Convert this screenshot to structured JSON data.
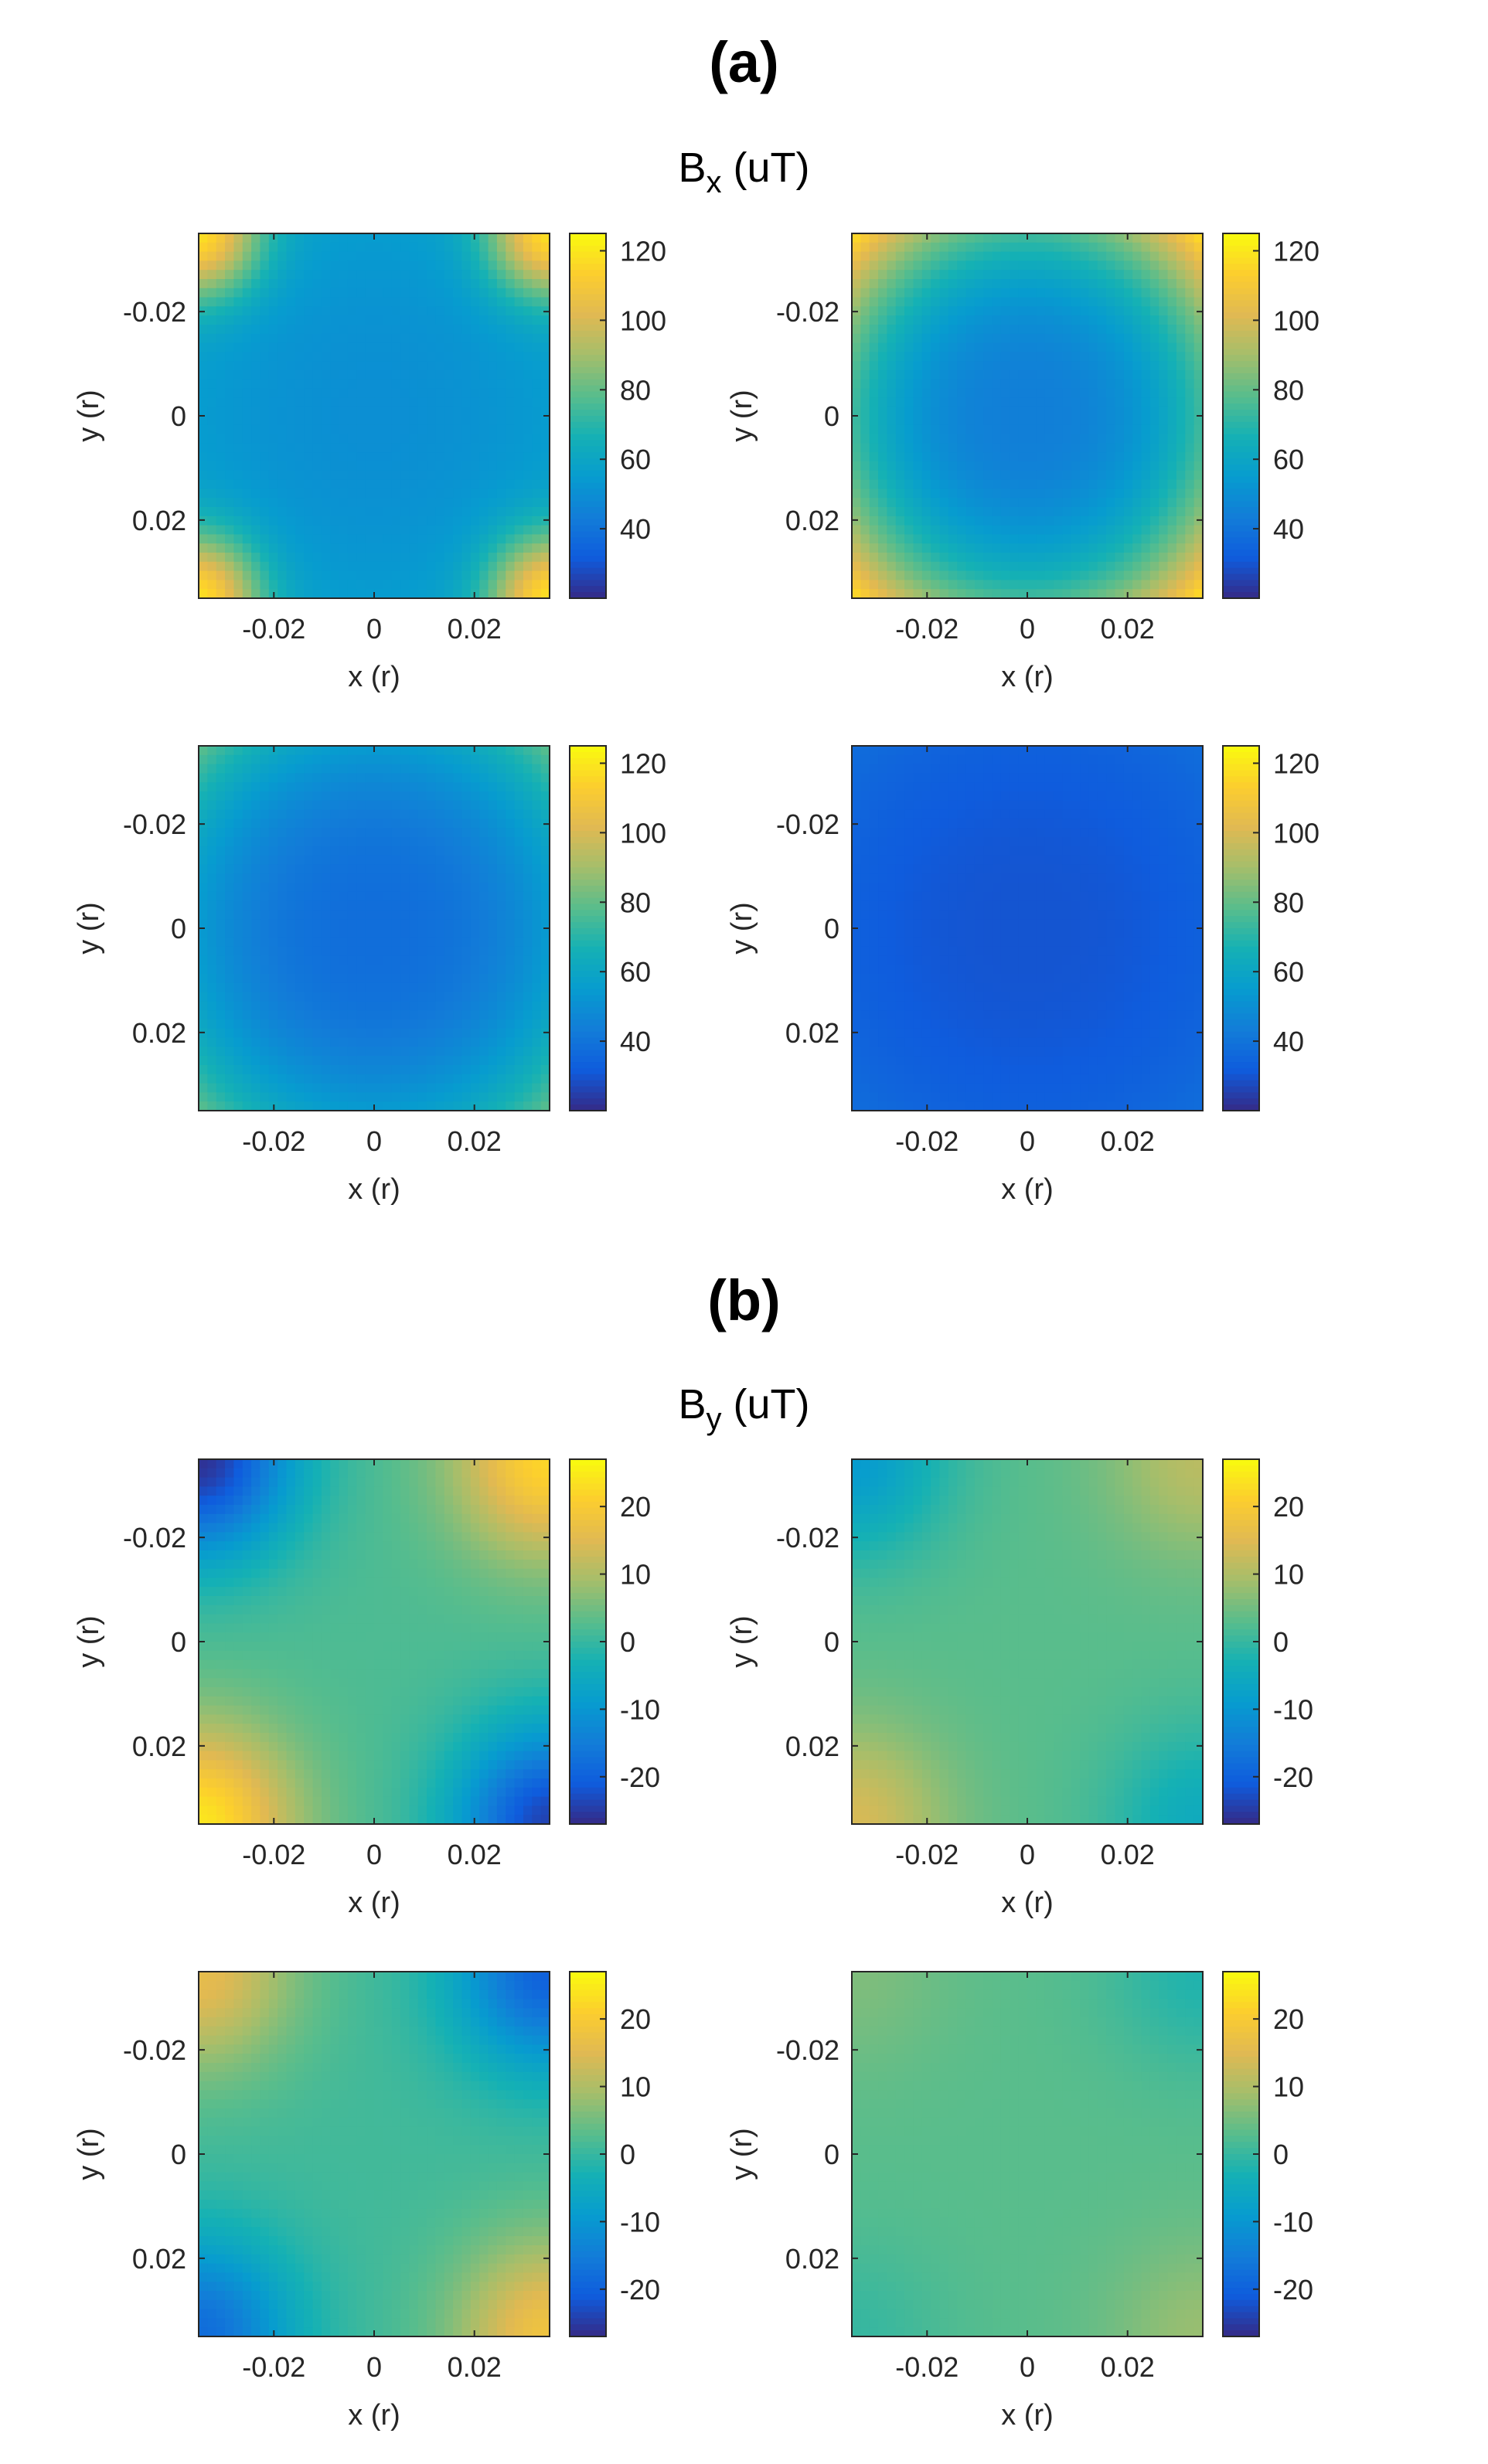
{
  "panel_a": {
    "label": "(a)",
    "title_main": "B",
    "title_sub": "x",
    "title_unit": " (uT)"
  },
  "panel_b": {
    "label": "(b)",
    "title_main": "B",
    "title_sub": "y",
    "title_unit": " (uT)"
  },
  "chart_data": [
    {
      "type": "heatmap",
      "panel": "a",
      "title": "",
      "quantity": "B_x (uT)",
      "xlabel": "x (r)",
      "ylabel": "y (r)",
      "xlim": [
        -0.035,
        0.035
      ],
      "ylim": [
        -0.035,
        0.035
      ],
      "y_direction": "reverse",
      "xticks": [
        -0.02,
        0,
        0.02
      ],
      "yticks": [
        -0.02,
        0,
        0.02
      ],
      "xtick_labels": [
        "-0.02",
        "0",
        "0.02"
      ],
      "ytick_labels": [
        "-0.02",
        "0",
        "0.02"
      ],
      "clim": [
        20,
        125
      ],
      "colorbar_ticks": [
        40,
        60,
        80,
        100,
        120
      ],
      "colorbar_tick_labels": [
        "40",
        "60",
        "80",
        "100",
        "120"
      ],
      "colormap": "parula",
      "center_value": 50,
      "corner_value": 118,
      "pattern": "corner-arcs"
    },
    {
      "type": "heatmap",
      "panel": "a",
      "title": "",
      "quantity": "B_x (uT)",
      "xlabel": "x (r)",
      "ylabel": "y (r)",
      "xlim": [
        -0.035,
        0.035
      ],
      "ylim": [
        -0.035,
        0.035
      ],
      "y_direction": "reverse",
      "xticks": [
        -0.02,
        0,
        0.02
      ],
      "yticks": [
        -0.02,
        0,
        0.02
      ],
      "xtick_labels": [
        "-0.02",
        "0",
        "0.02"
      ],
      "ytick_labels": [
        "-0.02",
        "0",
        "0.02"
      ],
      "clim": [
        20,
        125
      ],
      "colorbar_ticks": [
        40,
        60,
        80,
        100,
        120
      ],
      "colorbar_tick_labels": [
        "40",
        "60",
        "80",
        "100",
        "120"
      ],
      "colormap": "parula",
      "center_value": 44,
      "corner_value": 120,
      "pattern": "radial"
    },
    {
      "type": "heatmap",
      "panel": "a",
      "title": "",
      "quantity": "B_x (uT)",
      "xlabel": "x (r)",
      "ylabel": "y (r)",
      "xlim": [
        -0.035,
        0.035
      ],
      "ylim": [
        -0.035,
        0.035
      ],
      "y_direction": "reverse",
      "xticks": [
        -0.02,
        0,
        0.02
      ],
      "yticks": [
        -0.02,
        0,
        0.02
      ],
      "xtick_labels": [
        "-0.02",
        "0",
        "0.02"
      ],
      "ytick_labels": [
        "-0.02",
        "0",
        "0.02"
      ],
      "clim": [
        20,
        125
      ],
      "colorbar_ticks": [
        40,
        60,
        80,
        100,
        120
      ],
      "colorbar_tick_labels": [
        "40",
        "60",
        "80",
        "100",
        "120"
      ],
      "colormap": "parula",
      "center_value": 38,
      "corner_value": 80,
      "pattern": "radial"
    },
    {
      "type": "heatmap",
      "panel": "a",
      "title": "",
      "quantity": "B_x (uT)",
      "xlabel": "x (r)",
      "ylabel": "y (r)",
      "xlim": [
        -0.035,
        0.035
      ],
      "ylim": [
        -0.035,
        0.035
      ],
      "y_direction": "reverse",
      "xticks": [
        -0.02,
        0,
        0.02
      ],
      "yticks": [
        -0.02,
        0,
        0.02
      ],
      "xtick_labels": [
        "-0.02",
        "0",
        "0.02"
      ],
      "ytick_labels": [
        "-0.02",
        "0",
        "0.02"
      ],
      "clim": [
        20,
        125
      ],
      "colorbar_ticks": [
        40,
        60,
        80,
        100,
        120
      ],
      "colorbar_tick_labels": [
        "40",
        "60",
        "80",
        "100",
        "120"
      ],
      "colormap": "parula",
      "center_value": 30,
      "corner_value": 38,
      "pattern": "radial"
    },
    {
      "type": "heatmap",
      "panel": "b",
      "title": "",
      "quantity": "B_y (uT)",
      "xlabel": "x (r)",
      "ylabel": "y (r)",
      "xlim": [
        -0.035,
        0.035
      ],
      "ylim": [
        -0.035,
        0.035
      ],
      "y_direction": "reverse",
      "xticks": [
        -0.02,
        0,
        0.02
      ],
      "yticks": [
        -0.02,
        0,
        0.02
      ],
      "xtick_labels": [
        "-0.02",
        "0",
        "0.02"
      ],
      "ytick_labels": [
        "-0.02",
        "0",
        "0.02"
      ],
      "clim": [
        -27,
        27
      ],
      "colorbar_ticks": [
        -20,
        -10,
        0,
        10,
        20
      ],
      "colorbar_tick_labels": [
        "-20",
        "-10",
        "0",
        "10",
        "20"
      ],
      "colormap": "parula",
      "center_value": 2,
      "corner_values": {
        "top_left": -26,
        "top_right": 22,
        "bottom_left": 24,
        "bottom_right": -24
      }
    },
    {
      "type": "heatmap",
      "panel": "b",
      "title": "",
      "quantity": "B_y (uT)",
      "xlabel": "x (r)",
      "ylabel": "y (r)",
      "xlim": [
        -0.035,
        0.035
      ],
      "ylim": [
        -0.035,
        0.035
      ],
      "y_direction": "reverse",
      "xticks": [
        -0.02,
        0,
        0.02
      ],
      "yticks": [
        -0.02,
        0,
        0.02
      ],
      "xtick_labels": [
        "-0.02",
        "0",
        "0.02"
      ],
      "ytick_labels": [
        "-0.02",
        "0",
        "0.02"
      ],
      "clim": [
        -27,
        27
      ],
      "colorbar_ticks": [
        -20,
        -10,
        0,
        10,
        20
      ],
      "colorbar_tick_labels": [
        "-20",
        "-10",
        "0",
        "10",
        "20"
      ],
      "colormap": "parula",
      "center_value": 3,
      "corner_values": {
        "top_left": -9,
        "top_right": 11,
        "bottom_left": 14,
        "bottom_right": -5
      }
    },
    {
      "type": "heatmap",
      "panel": "b",
      "title": "",
      "quantity": "B_y (uT)",
      "xlabel": "x (r)",
      "ylabel": "y (r)",
      "xlim": [
        -0.035,
        0.035
      ],
      "ylim": [
        -0.035,
        0.035
      ],
      "y_direction": "reverse",
      "xticks": [
        -0.02,
        0,
        0.02
      ],
      "yticks": [
        -0.02,
        0,
        0.02
      ],
      "xtick_labels": [
        "-0.02",
        "0",
        "0.02"
      ],
      "ytick_labels": [
        "-0.02",
        "0",
        "0.02"
      ],
      "clim": [
        -27,
        27
      ],
      "colorbar_ticks": [
        -20,
        -10,
        0,
        10,
        20
      ],
      "colorbar_tick_labels": [
        "-20",
        "-10",
        "0",
        "10",
        "20"
      ],
      "colormap": "parula",
      "center_value": 1,
      "corner_values": {
        "top_left": 16,
        "top_right": -20,
        "bottom_left": -18,
        "bottom_right": 18
      }
    },
    {
      "type": "heatmap",
      "panel": "b",
      "title": "",
      "quantity": "B_y (uT)",
      "xlabel": "x (r)",
      "ylabel": "y (r)",
      "xlim": [
        -0.035,
        0.035
      ],
      "ylim": [
        -0.035,
        0.035
      ],
      "y_direction": "reverse",
      "xticks": [
        -0.02,
        0,
        0.02
      ],
      "yticks": [
        -0.02,
        0,
        0.02
      ],
      "xtick_labels": [
        "-0.02",
        "0",
        "0.02"
      ],
      "ytick_labels": [
        "-0.02",
        "0",
        "0.02"
      ],
      "clim": [
        -27,
        27
      ],
      "colorbar_ticks": [
        -20,
        -10,
        0,
        10,
        20
      ],
      "colorbar_tick_labels": [
        "-20",
        "-10",
        "0",
        "10",
        "20"
      ],
      "colormap": "parula",
      "center_value": 3,
      "corner_values": {
        "top_left": 6,
        "top_right": -2,
        "bottom_left": 0,
        "bottom_right": 8
      }
    }
  ]
}
